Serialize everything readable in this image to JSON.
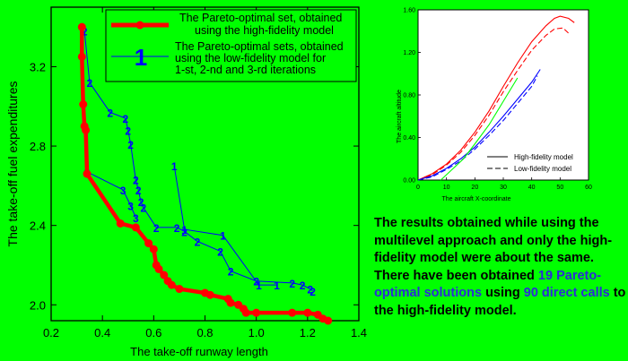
{
  "colors": {
    "background": "#00ff00",
    "red": "#ff0000",
    "blue": "#0000ff",
    "note_highlight": "#2b2bd9"
  },
  "chart_data": [
    {
      "type": "line",
      "xlabel": "The take-off runway length",
      "ylabel": "The take-off fuel expenditures",
      "xlim": [
        0.2,
        1.4
      ],
      "ylim": [
        1.92,
        3.5
      ],
      "x_ticks": [
        "0.2",
        "0.4",
        "0.6",
        "0.8",
        "1.0",
        "1.2",
        "1.4"
      ],
      "y_ticks": [
        "2.0",
        "2.4",
        "2.8",
        "3.2"
      ],
      "x_tick_values": [
        0.2,
        0.4,
        0.6,
        0.8,
        1.0,
        1.2,
        1.4
      ],
      "y_tick_values": [
        2.0,
        2.4,
        2.8,
        3.2
      ],
      "legend_position": "top-right",
      "series": [
        {
          "name": "The Pareto-optimal set, obtained using the high-fidelity model",
          "legend_lines": [
            "The Pareto-optimal set, obtained",
            "using the high-fidelity model"
          ],
          "color": "#ff0000",
          "points": [
            [
              0.32,
              3.4
            ],
            [
              0.32,
              3.25
            ],
            [
              0.325,
              3.01
            ],
            [
              0.33,
              2.9
            ],
            [
              0.335,
              2.88
            ],
            [
              0.34,
              2.66
            ],
            [
              0.47,
              2.41
            ],
            [
              0.53,
              2.39
            ],
            [
              0.58,
              2.31
            ],
            [
              0.6,
              2.28
            ],
            [
              0.61,
              2.2
            ],
            [
              0.62,
              2.18
            ],
            [
              0.64,
              2.15
            ],
            [
              0.655,
              2.12
            ],
            [
              0.67,
              2.1
            ],
            [
              0.7,
              2.08
            ],
            [
              0.8,
              2.06
            ],
            [
              0.82,
              2.05
            ],
            [
              0.89,
              2.03
            ],
            [
              0.9,
              2.01
            ],
            [
              0.93,
              2.0
            ],
            [
              0.95,
              1.98
            ],
            [
              0.96,
              1.96
            ],
            [
              1.0,
              1.96
            ],
            [
              1.14,
              1.96
            ],
            [
              1.2,
              1.96
            ],
            [
              1.24,
              1.95
            ],
            [
              1.26,
              1.93
            ],
            [
              1.28,
              1.92
            ]
          ]
        },
        {
          "name": "The Pareto-optimal sets, obtained using the low-fidelity model for 1-st, 2-nd and 3-rd iterations",
          "legend_lines": [
            "The Pareto-optimal sets, obtained",
            "using the low-fidelity model for",
            "1-st, 2-nd and 3-rd iterations"
          ],
          "legend_marker": "1",
          "color": "#0000ff",
          "iterations": [
            {
              "label": "1",
              "points": [
                [
                  0.68,
                  2.7
                ],
                [
                  0.72,
                  2.38
                ],
                [
                  0.87,
                  2.35
                ],
                [
                  1.01,
                  2.1
                ],
                [
                  1.08,
                  2.1
                ]
              ]
            },
            {
              "label": "2",
              "points": [
                [
                  0.33,
                  3.38
                ],
                [
                  0.35,
                  3.12
                ],
                [
                  0.43,
                  2.97
                ],
                [
                  0.49,
                  2.94
                ],
                [
                  0.5,
                  2.88
                ],
                [
                  0.51,
                  2.81
                ],
                [
                  0.53,
                  2.63
                ],
                [
                  0.54,
                  2.58
                ],
                [
                  0.55,
                  2.52
                ],
                [
                  0.56,
                  2.49
                ],
                [
                  0.61,
                  2.39
                ],
                [
                  0.69,
                  2.39
                ],
                [
                  0.72,
                  2.37
                ],
                [
                  0.77,
                  2.32
                ],
                [
                  0.86,
                  2.27
                ],
                [
                  0.9,
                  2.17
                ],
                [
                  1.0,
                  2.12
                ],
                [
                  1.14,
                  2.11
                ],
                [
                  1.18,
                  2.1
                ],
                [
                  1.21,
                  2.08
                ],
                [
                  1.22,
                  2.07
                ]
              ]
            },
            {
              "label": "3",
              "points": [
                [
                  0.34,
                  2.67
                ],
                [
                  0.48,
                  2.58
                ],
                [
                  0.51,
                  2.5
                ],
                [
                  0.53,
                  2.44
                ]
              ]
            }
          ]
        }
      ]
    },
    {
      "type": "line",
      "xlabel": "The aircraft X-coordinate",
      "ylabel": "The aircraft altitude",
      "xlim": [
        0,
        60
      ],
      "ylim": [
        0,
        1.6
      ],
      "x_ticks": [
        "0",
        "10",
        "20",
        "30",
        "40",
        "50",
        "60"
      ],
      "y_ticks": [
        "0.00",
        "0.40",
        "0.80",
        "1.20",
        "1.60"
      ],
      "x_tick_values": [
        0,
        10,
        20,
        30,
        40,
        50,
        60
      ],
      "y_tick_values": [
        0.0,
        0.4,
        0.8,
        1.2,
        1.6
      ],
      "legend_position": "bottom-right",
      "legend": [
        {
          "label": "High-fidelity model",
          "style": "solid"
        },
        {
          "label": "Low-fidelity model",
          "style": "dashed"
        }
      ],
      "series": [
        {
          "color": "#ff0000",
          "style": "solid",
          "points": [
            [
              0,
              0
            ],
            [
              5,
              0.06
            ],
            [
              10,
              0.15
            ],
            [
              15,
              0.28
            ],
            [
              20,
              0.45
            ],
            [
              25,
              0.65
            ],
            [
              30,
              0.88
            ],
            [
              35,
              1.1
            ],
            [
              40,
              1.3
            ],
            [
              45,
              1.45
            ],
            [
              48,
              1.52
            ],
            [
              50,
              1.54
            ],
            [
              53,
              1.52
            ],
            [
              55,
              1.48
            ]
          ]
        },
        {
          "color": "#ff0000",
          "style": "dashed",
          "points": [
            [
              0,
              0
            ],
            [
              5,
              0.05
            ],
            [
              10,
              0.14
            ],
            [
              15,
              0.26
            ],
            [
              20,
              0.42
            ],
            [
              25,
              0.61
            ],
            [
              30,
              0.83
            ],
            [
              35,
              1.03
            ],
            [
              40,
              1.22
            ],
            [
              45,
              1.36
            ],
            [
              48,
              1.42
            ],
            [
              51,
              1.43
            ],
            [
              53,
              1.38
            ]
          ]
        },
        {
          "color": "#0000ff",
          "style": "solid",
          "points": [
            [
              0,
              0
            ],
            [
              5,
              0.04
            ],
            [
              10,
              0.11
            ],
            [
              15,
              0.2
            ],
            [
              20,
              0.31
            ],
            [
              25,
              0.45
            ],
            [
              30,
              0.6
            ],
            [
              35,
              0.76
            ],
            [
              40,
              0.92
            ],
            [
              43,
              1.04
            ]
          ]
        },
        {
          "color": "#0000ff",
          "style": "dashed",
          "points": [
            [
              0,
              0
            ],
            [
              5,
              0.03
            ],
            [
              10,
              0.1
            ],
            [
              15,
              0.18
            ],
            [
              20,
              0.29
            ],
            [
              25,
              0.42
            ],
            [
              30,
              0.56
            ],
            [
              35,
              0.72
            ],
            [
              40,
              0.88
            ],
            [
              42,
              0.98
            ]
          ]
        },
        {
          "color": "#00ff00",
          "style": "solid",
          "points": [
            [
              8,
              0
            ],
            [
              12,
              0.1
            ],
            [
              16,
              0.2
            ],
            [
              20,
              0.34
            ],
            [
              25,
              0.52
            ],
            [
              30,
              0.74
            ],
            [
              35,
              0.96
            ]
          ]
        }
      ]
    }
  ],
  "note": {
    "part1": "The results obtained while using the multilevel approach and only the high-fidelity model were about the same. There have been obtained",
    "hl1": "19 Pareto-optimal solutions",
    "part2": "using",
    "hl2": "90 direct calls",
    "part3": "to the high-fidelity model."
  }
}
